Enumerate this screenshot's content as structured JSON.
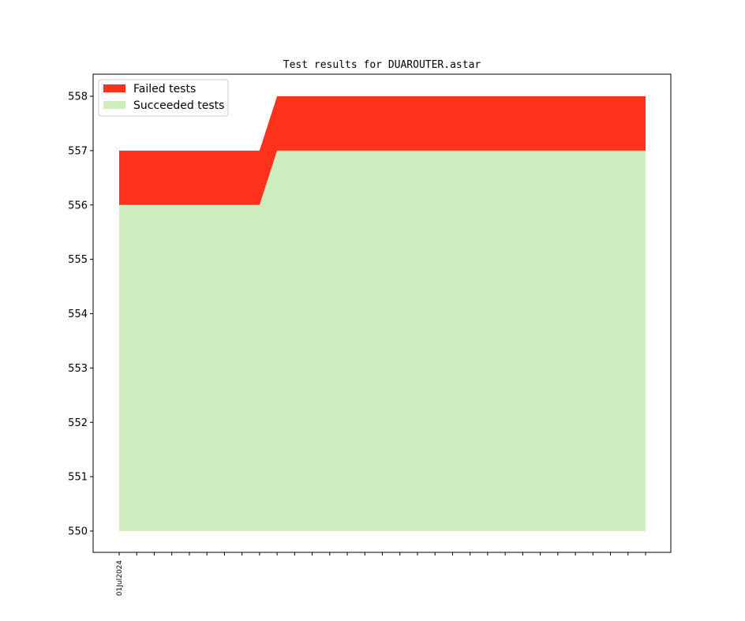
{
  "chart_data": {
    "type": "area",
    "title": "Test results for DUAROUTER.astar",
    "xlabel": "",
    "ylabel": "",
    "ylim": [
      550,
      558
    ],
    "yticks": [
      550,
      551,
      552,
      553,
      554,
      555,
      556,
      557,
      558
    ],
    "x_tick_labels": [
      "01Jul2024"
    ],
    "x_count": 31,
    "grid": false,
    "legend_position": "upper-left",
    "series": [
      {
        "name": "Failed tests",
        "color": "#ff331c",
        "stack_base": "Succeeded tests",
        "values": [
          557,
          557,
          557,
          557,
          557,
          557,
          557,
          557,
          557,
          558,
          558,
          558,
          558,
          558,
          558,
          558,
          558,
          558,
          558,
          558,
          558,
          558,
          558,
          558,
          558,
          558,
          558,
          558,
          558,
          558,
          558
        ]
      },
      {
        "name": "Succeeded tests",
        "color": "#ceedbe",
        "baseline": 550,
        "values": [
          556,
          556,
          556,
          556,
          556,
          556,
          556,
          556,
          556,
          557,
          557,
          557,
          557,
          557,
          557,
          557,
          557,
          557,
          557,
          557,
          557,
          557,
          557,
          557,
          557,
          557,
          557,
          557,
          557,
          557,
          557
        ]
      }
    ]
  }
}
